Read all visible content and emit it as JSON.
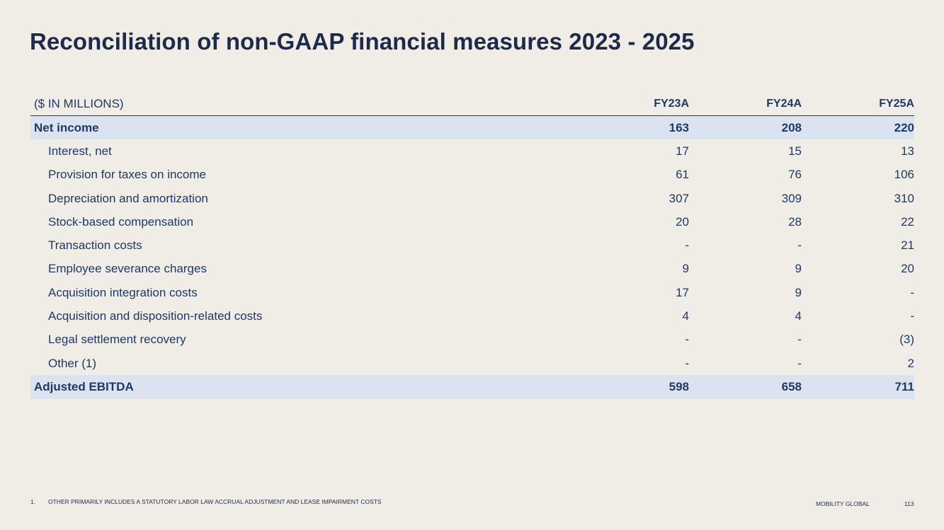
{
  "title": "Reconciliation of non-GAAP financial measures 2023 - 2025",
  "table": {
    "unit_label": "($ IN MILLIONS)",
    "columns": [
      "FY23A",
      "FY24A",
      "FY25A"
    ],
    "rows": [
      {
        "label": "Net income",
        "values": [
          "163",
          "208",
          "220"
        ],
        "total": true
      },
      {
        "label": "Interest, net",
        "values": [
          "17",
          "15",
          "13"
        ]
      },
      {
        "label": "Provision for taxes on income",
        "values": [
          "61",
          "76",
          "106"
        ]
      },
      {
        "label": "Depreciation and amortization",
        "values": [
          "307",
          "309",
          "310"
        ]
      },
      {
        "label": "Stock-based compensation",
        "values": [
          "20",
          "28",
          "22"
        ]
      },
      {
        "label": "Transaction costs",
        "values": [
          "-",
          "-",
          "21"
        ]
      },
      {
        "label": "Employee severance charges",
        "values": [
          "9",
          "9",
          "20"
        ]
      },
      {
        "label": "Acquisition integration costs",
        "values": [
          "17",
          "9",
          "-"
        ]
      },
      {
        "label": "Acquisition and disposition-related costs",
        "values": [
          "4",
          "4",
          "-"
        ]
      },
      {
        "label": "Legal settlement recovery",
        "values": [
          "-",
          "-",
          "(3)"
        ]
      },
      {
        "label": "Other (1)",
        "values": [
          "-",
          "-",
          "2"
        ]
      },
      {
        "label": "Adjusted EBITDA",
        "values": [
          "598",
          "658",
          "711"
        ],
        "total": true
      }
    ]
  },
  "footnote": {
    "number": "1.",
    "text": "OTHER PRIMARILY INCLUDES A STATUTORY LABOR LAW ACCRUAL ADJUSTMENT AND LEASE IMPAIRMENT COSTS"
  },
  "footer": {
    "brand": "MOBILITY GLOBAL",
    "page_number": "113"
  },
  "colors": {
    "background": "#efede6",
    "text": "#1f3864",
    "highlight_row": "#dce3f0"
  }
}
